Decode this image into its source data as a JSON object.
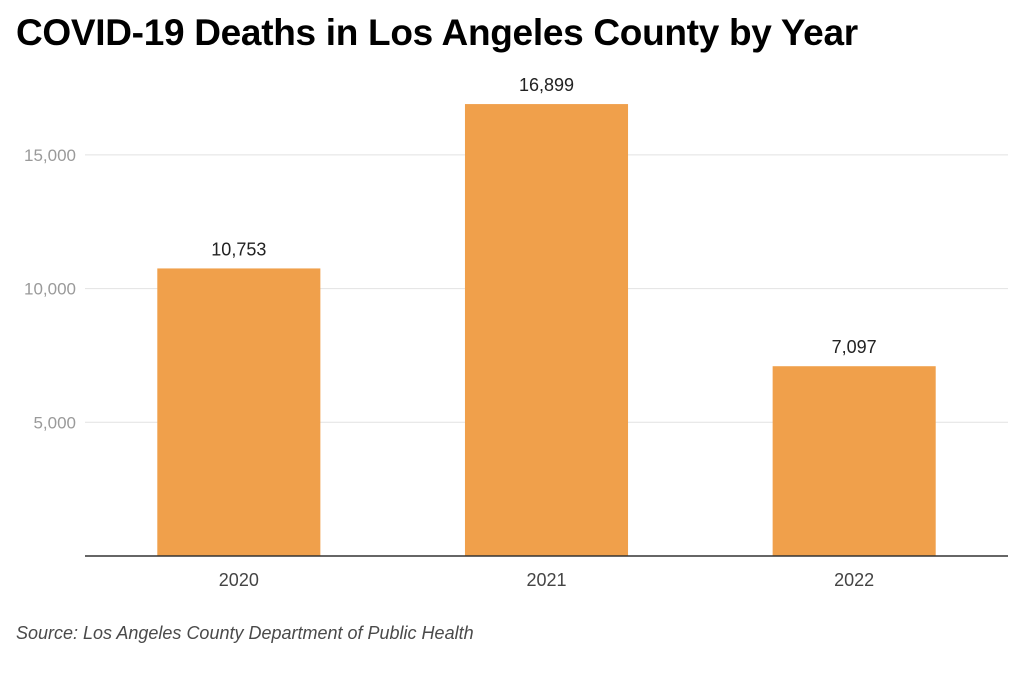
{
  "chart_data": {
    "type": "bar",
    "title": "COVID-19 Deaths in Los Angeles County by Year",
    "categories": [
      "2020",
      "2021",
      "2022"
    ],
    "values": [
      10753,
      16899,
      7097
    ],
    "value_labels": [
      "10,753",
      "16,899",
      "7,097"
    ],
    "xlabel": "",
    "ylabel": "",
    "ylim": [
      0,
      17500
    ],
    "yticks": [
      5000,
      10000,
      15000
    ],
    "ytick_labels": [
      "5,000",
      "10,000",
      "15,000"
    ],
    "grid": true,
    "legend": "none",
    "bar_color": "#f0a04b"
  },
  "source": "Source: Los Angeles County Department of Public Health"
}
